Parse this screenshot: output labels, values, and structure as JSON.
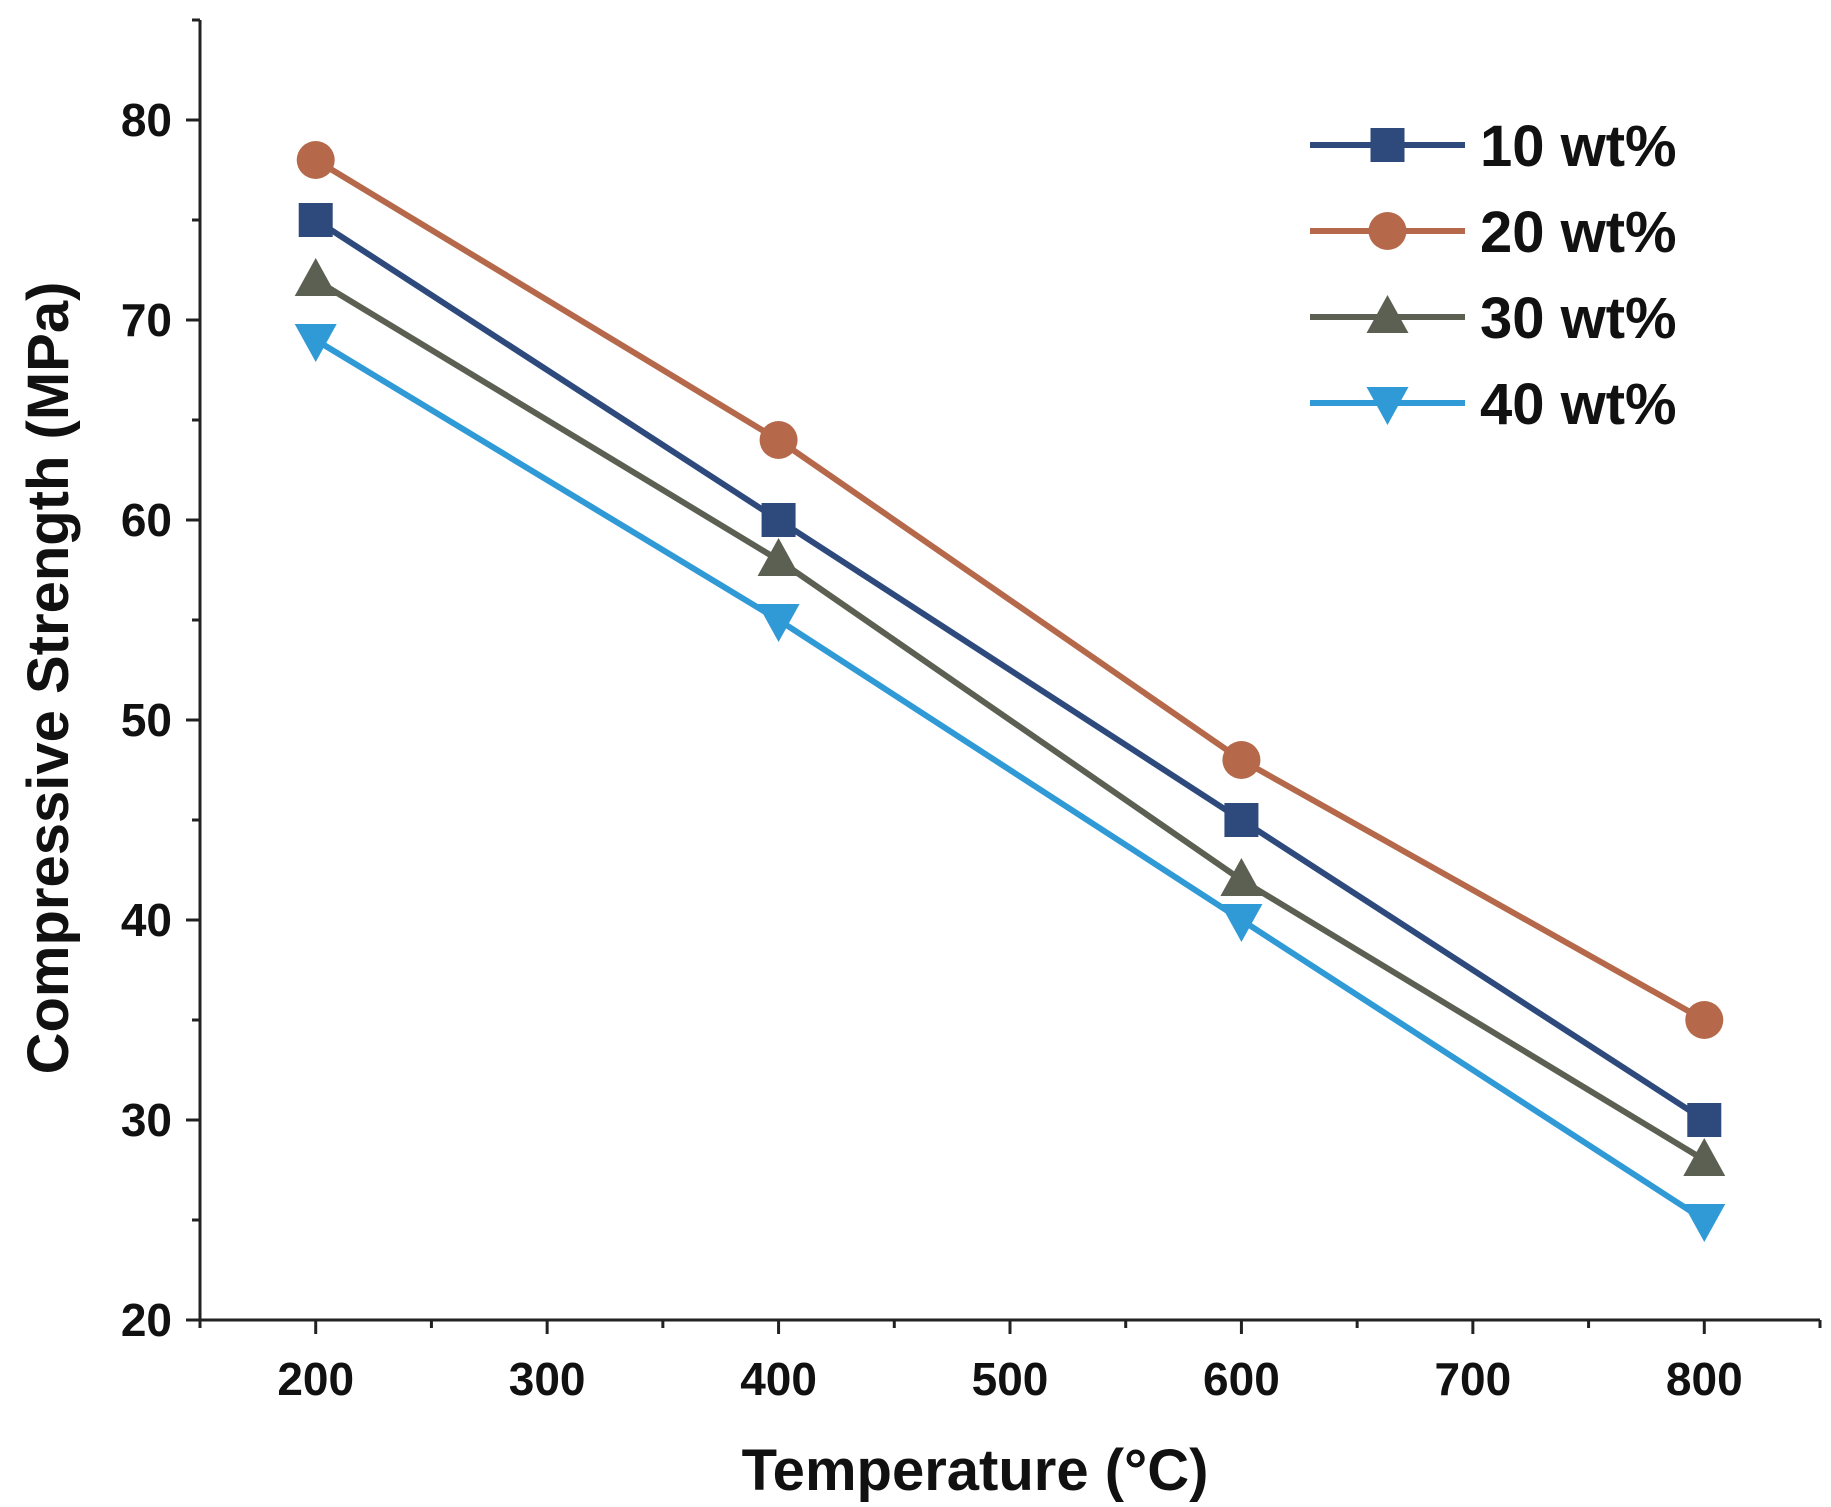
{
  "chart_data": {
    "type": "line",
    "title": "",
    "xlabel": "Temperature (°C)",
    "ylabel": "Compressive Strength (MPa)",
    "xlim": [
      150,
      850
    ],
    "ylim": [
      20,
      85
    ],
    "xticks": [
      200,
      300,
      400,
      500,
      600,
      700,
      800
    ],
    "yticks": [
      20,
      30,
      40,
      50,
      60,
      70,
      80
    ],
    "x": [
      200,
      400,
      600,
      800
    ],
    "legend_position": "top-right",
    "grid": false,
    "series": [
      {
        "name": "10 wt%",
        "values": [
          75,
          60,
          45,
          30
        ],
        "color": "#2e4a7d",
        "marker": "square"
      },
      {
        "name": "20 wt%",
        "values": [
          78,
          64,
          48,
          35
        ],
        "color": "#b5694a",
        "marker": "circle"
      },
      {
        "name": "30 wt%",
        "values": [
          72,
          58,
          42,
          28
        ],
        "color": "#5c6052",
        "marker": "triangle-up"
      },
      {
        "name": "40 wt%",
        "values": [
          69,
          55,
          40,
          25
        ],
        "color": "#2f9ad6",
        "marker": "triangle-down"
      }
    ]
  }
}
